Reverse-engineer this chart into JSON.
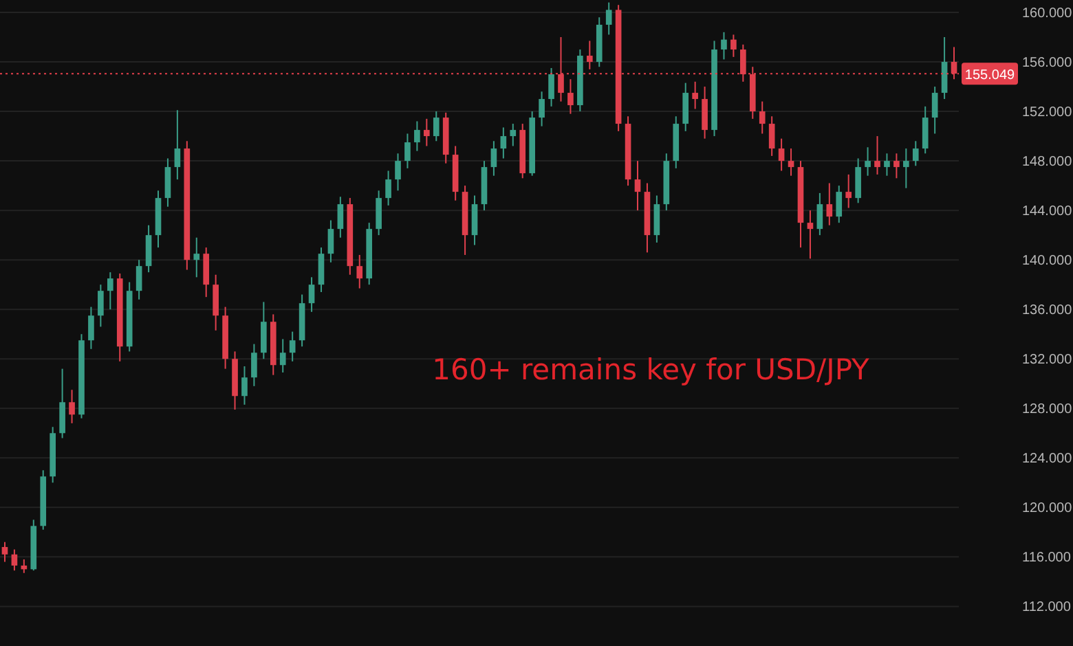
{
  "chart_data": {
    "type": "candlestick",
    "categories": [
      null,
      null,
      null,
      null,
      null,
      null,
      null,
      null,
      null,
      null,
      null,
      null,
      null,
      null,
      null,
      null,
      null,
      null,
      null,
      null,
      null,
      null,
      null,
      null,
      null,
      null,
      null,
      null,
      null,
      null,
      null,
      null,
      null,
      null,
      null,
      null,
      null,
      null,
      null,
      null,
      null,
      null,
      null,
      null,
      null,
      null,
      null,
      null,
      null,
      null,
      null,
      null,
      null,
      null,
      null,
      null,
      null,
      null,
      null,
      null,
      null,
      null,
      null,
      null,
      null,
      null,
      null,
      null,
      null,
      null,
      null,
      null,
      null,
      null,
      null,
      null,
      null,
      null,
      null,
      null,
      null,
      null,
      null,
      null,
      null,
      null,
      null,
      null,
      null,
      null,
      null,
      null,
      null,
      null,
      null,
      null,
      null,
      null,
      null,
      null
    ],
    "ohlc": [
      [
        116.8,
        117.2,
        115.6,
        116.2
      ],
      [
        116.2,
        116.6,
        114.9,
        115.3
      ],
      [
        115.3,
        115.8,
        114.7,
        115.0
      ],
      [
        115.0,
        119.0,
        114.9,
        118.5
      ],
      [
        118.5,
        123.0,
        118.2,
        122.5
      ],
      [
        122.5,
        126.5,
        122.0,
        126.0
      ],
      [
        126.0,
        131.2,
        125.6,
        128.5
      ],
      [
        128.5,
        129.5,
        126.8,
        127.5
      ],
      [
        127.5,
        134.0,
        127.2,
        133.5
      ],
      [
        133.5,
        136.2,
        132.8,
        135.5
      ],
      [
        135.5,
        138.0,
        134.6,
        137.5
      ],
      [
        137.5,
        139.0,
        136.0,
        138.5
      ],
      [
        138.5,
        138.9,
        131.8,
        133.0
      ],
      [
        133.0,
        138.2,
        132.6,
        137.5
      ],
      [
        137.5,
        140.0,
        136.8,
        139.5
      ],
      [
        139.5,
        142.8,
        139.0,
        142.0
      ],
      [
        142.0,
        145.6,
        141.0,
        145.0
      ],
      [
        145.0,
        148.2,
        144.3,
        147.5
      ],
      [
        147.5,
        152.1,
        146.5,
        149.0
      ],
      [
        149.0,
        149.6,
        139.2,
        140.0
      ],
      [
        140.0,
        141.8,
        138.6,
        140.5
      ],
      [
        140.5,
        141.0,
        137.0,
        138.0
      ],
      [
        138.0,
        138.8,
        134.3,
        135.5
      ],
      [
        135.5,
        136.2,
        131.2,
        132.0
      ],
      [
        132.0,
        132.6,
        127.9,
        129.0
      ],
      [
        129.0,
        131.4,
        128.3,
        130.5
      ],
      [
        130.5,
        133.2,
        129.8,
        132.5
      ],
      [
        132.5,
        136.6,
        132.0,
        135.0
      ],
      [
        135.0,
        135.6,
        130.7,
        131.5
      ],
      [
        131.5,
        133.6,
        130.9,
        132.5
      ],
      [
        132.5,
        134.2,
        131.8,
        133.5
      ],
      [
        133.5,
        137.2,
        133.0,
        136.5
      ],
      [
        136.5,
        138.6,
        135.8,
        138.0
      ],
      [
        138.0,
        141.0,
        137.4,
        140.5
      ],
      [
        140.5,
        143.2,
        139.8,
        142.5
      ],
      [
        142.5,
        145.1,
        141.8,
        144.5
      ],
      [
        144.5,
        145.0,
        138.8,
        139.5
      ],
      [
        139.5,
        140.4,
        137.7,
        138.5
      ],
      [
        138.5,
        143.0,
        138.0,
        142.5
      ],
      [
        142.5,
        145.6,
        142.0,
        145.0
      ],
      [
        145.0,
        147.2,
        144.4,
        146.5
      ],
      [
        146.5,
        148.6,
        145.6,
        148.0
      ],
      [
        148.0,
        150.2,
        147.4,
        149.5
      ],
      [
        149.5,
        151.2,
        148.8,
        150.5
      ],
      [
        150.5,
        151.4,
        149.2,
        150.0
      ],
      [
        150.0,
        152.0,
        149.6,
        151.5
      ],
      [
        151.5,
        151.9,
        147.8,
        148.5
      ],
      [
        148.5,
        149.2,
        144.8,
        145.5
      ],
      [
        145.5,
        146.0,
        140.4,
        142.0
      ],
      [
        142.0,
        145.2,
        141.2,
        144.5
      ],
      [
        144.5,
        148.0,
        144.0,
        147.5
      ],
      [
        147.5,
        149.6,
        146.8,
        149.0
      ],
      [
        149.0,
        150.7,
        148.2,
        150.0
      ],
      [
        150.0,
        151.0,
        149.2,
        150.5
      ],
      [
        150.5,
        151.0,
        146.6,
        147.0
      ],
      [
        147.0,
        152.0,
        146.8,
        151.5
      ],
      [
        151.5,
        153.6,
        150.8,
        153.0
      ],
      [
        153.0,
        155.5,
        152.4,
        155.0
      ],
      [
        155.0,
        158.0,
        152.8,
        153.5
      ],
      [
        153.5,
        154.6,
        151.8,
        152.5
      ],
      [
        152.5,
        157.0,
        152.0,
        156.5
      ],
      [
        156.5,
        157.7,
        155.4,
        156.0
      ],
      [
        156.0,
        159.6,
        155.6,
        159.0
      ],
      [
        159.0,
        160.8,
        158.2,
        160.2
      ],
      [
        160.2,
        160.6,
        150.4,
        151.0
      ],
      [
        151.0,
        151.6,
        146.0,
        146.5
      ],
      [
        146.5,
        148.0,
        144.0,
        145.5
      ],
      [
        145.5,
        146.2,
        140.6,
        142.0
      ],
      [
        142.0,
        145.2,
        141.4,
        144.5
      ],
      [
        144.5,
        148.6,
        144.0,
        148.0
      ],
      [
        148.0,
        151.6,
        147.4,
        151.0
      ],
      [
        151.0,
        154.3,
        150.4,
        153.5
      ],
      [
        153.5,
        154.4,
        152.2,
        153.0
      ],
      [
        153.0,
        154.0,
        149.8,
        150.5
      ],
      [
        150.5,
        157.7,
        150.0,
        157.0
      ],
      [
        157.0,
        158.4,
        156.2,
        157.8
      ],
      [
        157.8,
        158.2,
        156.4,
        157.0
      ],
      [
        157.0,
        157.4,
        154.4,
        155.0
      ],
      [
        155.0,
        155.6,
        151.4,
        152.0
      ],
      [
        152.0,
        152.8,
        150.2,
        151.0
      ],
      [
        151.0,
        151.6,
        148.4,
        149.0
      ],
      [
        149.0,
        149.8,
        147.2,
        148.0
      ],
      [
        148.0,
        149.0,
        146.8,
        147.5
      ],
      [
        147.5,
        148.0,
        141.0,
        143.0
      ],
      [
        143.0,
        144.0,
        140.1,
        142.5
      ],
      [
        142.5,
        145.4,
        142.0,
        144.5
      ],
      [
        144.5,
        146.2,
        142.8,
        143.5
      ],
      [
        143.5,
        146.0,
        143.0,
        145.5
      ],
      [
        145.5,
        146.9,
        144.2,
        145.0
      ],
      [
        145.0,
        148.2,
        144.6,
        147.5
      ],
      [
        147.5,
        149.1,
        146.8,
        148.0
      ],
      [
        148.0,
        150.0,
        146.9,
        147.5
      ],
      [
        147.5,
        148.6,
        146.8,
        148.0
      ],
      [
        148.0,
        148.6,
        146.6,
        147.5
      ],
      [
        147.5,
        149.0,
        145.8,
        148.0
      ],
      [
        148.0,
        149.6,
        147.6,
        149.0
      ],
      [
        149.0,
        152.4,
        148.6,
        151.5
      ],
      [
        151.5,
        154.0,
        150.2,
        153.5
      ],
      [
        153.5,
        158.0,
        153.0,
        156.0
      ],
      [
        156.0,
        157.2,
        154.6,
        155.049
      ]
    ],
    "ylim": [
      108.8,
      161
    ],
    "yticks": [
      {
        "value": 112,
        "label": "112.000"
      },
      {
        "value": 116,
        "label": "116.000"
      },
      {
        "value": 120,
        "label": "120.000"
      },
      {
        "value": 124,
        "label": "124.000"
      },
      {
        "value": 128,
        "label": "128.000"
      },
      {
        "value": 132,
        "label": "132.000"
      },
      {
        "value": 136,
        "label": "136.000"
      },
      {
        "value": 140,
        "label": "140.000"
      },
      {
        "value": 144,
        "label": "144.000"
      },
      {
        "value": 148,
        "label": "148.000"
      },
      {
        "value": 152,
        "label": "152.000"
      },
      {
        "value": 156,
        "label": "156.000"
      },
      {
        "value": 160,
        "label": "160.000"
      }
    ],
    "grid": "y",
    "tick_labels": "y",
    "ref_lines": [
      {
        "axis": "y",
        "value": 155.049,
        "label": "155.049",
        "color": "#e5404c",
        "line_style": "dotted"
      }
    ],
    "annotations": [
      "160+ remains key for USD/JPY"
    ]
  }
}
